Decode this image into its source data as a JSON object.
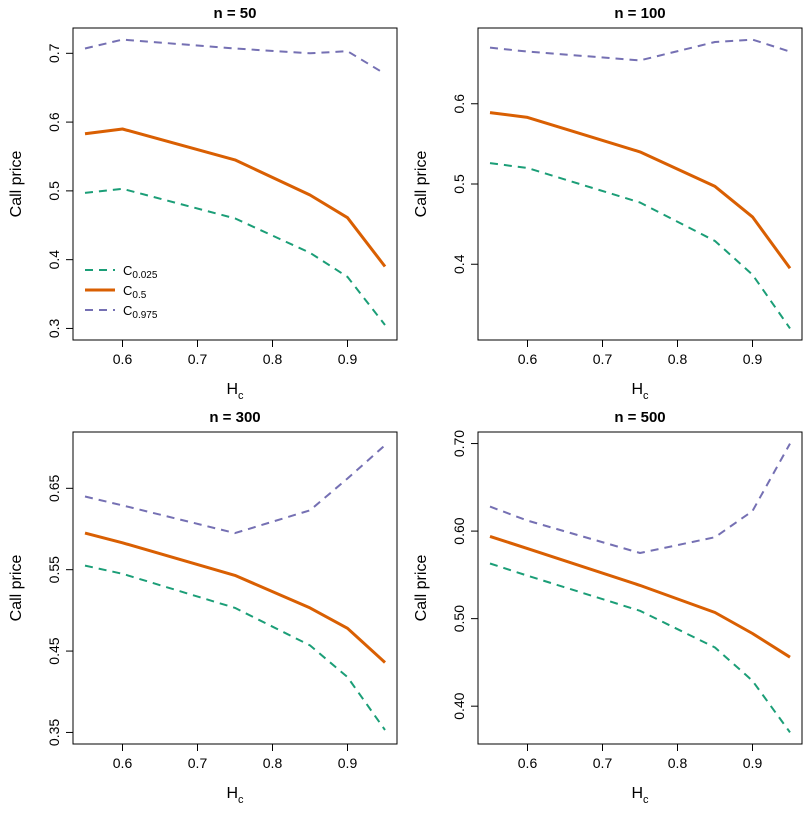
{
  "colors": {
    "c025": "#1b9e77",
    "c05": "#d95f02",
    "c0975": "#7570b3"
  },
  "legend": {
    "placement": "bottom-left",
    "entries": [
      {
        "base": "C",
        "sub": "0.025",
        "series": "c025"
      },
      {
        "base": "C",
        "sub": "0.5",
        "series": "c05"
      },
      {
        "base": "C",
        "sub": "0.975",
        "series": "c0975"
      }
    ]
  },
  "chart_data": [
    {
      "type": "line",
      "title": "n = 50",
      "xlabel": {
        "base": "H",
        "sub": "c"
      },
      "ylabel": "Call price",
      "x": [
        0.55,
        0.6,
        0.75,
        0.85,
        0.9,
        0.95
      ],
      "xlim": [
        0.55,
        0.95
      ],
      "ylim": [
        0.3,
        0.72
      ],
      "xticks": [
        "0.6",
        "0.7",
        "0.8",
        "0.9"
      ],
      "yticks": [
        "0.3",
        "0.4",
        "0.5",
        "0.6",
        "0.7"
      ],
      "show_legend": true,
      "series": [
        {
          "key": "c025",
          "dash": "dashed",
          "values": [
            0.497,
            0.503,
            0.46,
            0.41,
            0.375,
            0.305
          ]
        },
        {
          "key": "c05",
          "dash": "solid",
          "values": [
            0.583,
            0.59,
            0.545,
            0.494,
            0.461,
            0.39
          ]
        },
        {
          "key": "c0975",
          "dash": "dashed",
          "values": [
            0.707,
            0.72,
            0.707,
            0.7,
            0.703,
            0.67
          ]
        }
      ]
    },
    {
      "type": "line",
      "title": "n = 100",
      "xlabel": {
        "base": "H",
        "sub": "c"
      },
      "ylabel": "Call price",
      "x": [
        0.55,
        0.6,
        0.75,
        0.85,
        0.9,
        0.95
      ],
      "xlim": [
        0.55,
        0.95
      ],
      "ylim": [
        0.32,
        0.68
      ],
      "xticks": [
        "0.6",
        "0.7",
        "0.8",
        "0.9"
      ],
      "yticks": [
        "0.4",
        "0.5",
        "0.6"
      ],
      "show_legend": false,
      "series": [
        {
          "key": "c025",
          "dash": "dashed",
          "values": [
            0.526,
            0.52,
            0.477,
            0.429,
            0.387,
            0.32
          ]
        },
        {
          "key": "c05",
          "dash": "solid",
          "values": [
            0.589,
            0.583,
            0.54,
            0.497,
            0.459,
            0.395
          ]
        },
        {
          "key": "c0975",
          "dash": "dashed",
          "values": [
            0.67,
            0.665,
            0.654,
            0.677,
            0.68,
            0.665
          ]
        }
      ]
    },
    {
      "type": "line",
      "title": "n = 300",
      "xlabel": {
        "base": "H",
        "sub": "c"
      },
      "ylabel": "Call price",
      "x": [
        0.55,
        0.6,
        0.75,
        0.85,
        0.9,
        0.95
      ],
      "xlim": [
        0.55,
        0.95
      ],
      "ylim": [
        0.35,
        0.705
      ],
      "xticks": [
        "0.6",
        "0.7",
        "0.8",
        "0.9"
      ],
      "yticks": [
        "0.35",
        "0.45",
        "0.55",
        "0.65"
      ],
      "show_legend": false,
      "series": [
        {
          "key": "c025",
          "dash": "dashed",
          "values": [
            0.555,
            0.545,
            0.503,
            0.457,
            0.418,
            0.353
          ]
        },
        {
          "key": "c05",
          "dash": "solid",
          "values": [
            0.595,
            0.583,
            0.543,
            0.503,
            0.478,
            0.436
          ]
        },
        {
          "key": "c0975",
          "dash": "dashed",
          "values": [
            0.64,
            0.629,
            0.595,
            0.623,
            0.662,
            0.703
          ]
        }
      ]
    },
    {
      "type": "line",
      "title": "n = 500",
      "xlabel": {
        "base": "H",
        "sub": "c"
      },
      "ylabel": "Call price",
      "x": [
        0.55,
        0.6,
        0.75,
        0.85,
        0.9,
        0.95
      ],
      "xlim": [
        0.55,
        0.95
      ],
      "ylim": [
        0.37,
        0.7
      ],
      "xticks": [
        "0.6",
        "0.7",
        "0.8",
        "0.9"
      ],
      "yticks": [
        "0.40",
        "0.50",
        "0.60",
        "0.70"
      ],
      "show_legend": false,
      "series": [
        {
          "key": "c025",
          "dash": "dashed",
          "values": [
            0.563,
            0.549,
            0.509,
            0.467,
            0.429,
            0.37
          ]
        },
        {
          "key": "c05",
          "dash": "solid",
          "values": [
            0.594,
            0.58,
            0.538,
            0.507,
            0.483,
            0.456
          ]
        },
        {
          "key": "c0975",
          "dash": "dashed",
          "values": [
            0.628,
            0.612,
            0.575,
            0.593,
            0.623,
            0.7
          ]
        }
      ]
    }
  ]
}
